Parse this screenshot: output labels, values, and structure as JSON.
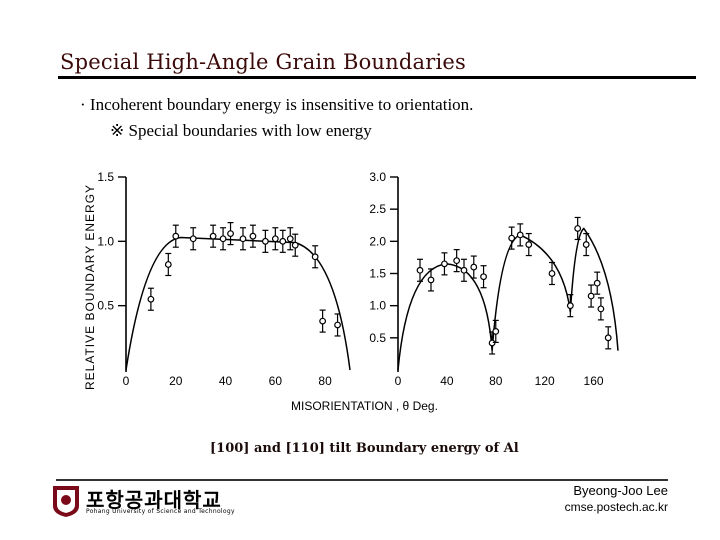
{
  "slide": {
    "title": "Special High-Angle Grain Boundaries",
    "bullet": "· Incoherent boundary energy is insensitive to orientation.",
    "sub_note": "※ Special boundaries with low energy",
    "caption": "[100] and [110] tilt Boundary energy of Al"
  },
  "footer": {
    "logo_korean": "포항공과대학교",
    "logo_english": "Pohang University of Science and Technology",
    "author": "Byeong-Joo Lee",
    "site": "cmse.postech.ac.kr"
  },
  "chart_data": [
    {
      "type": "scatter",
      "ylabel": "RELATIVE BOUNDARY ENERGY",
      "xlabel": "MISORIENTATION , θ Deg.",
      "xlim": [
        0,
        90
      ],
      "ylim": [
        0,
        1.5
      ],
      "x_ticks": [
        "0",
        "20",
        "40",
        "60",
        "80"
      ],
      "y_ticks": [
        "0.5",
        "1.0",
        "1.5"
      ],
      "series": [
        {
          "x": [
            10,
            17,
            20,
            27,
            35,
            39,
            42,
            47,
            51,
            56,
            60,
            63,
            66,
            68,
            76,
            79,
            85
          ],
          "y": [
            0.55,
            0.82,
            1.04,
            1.02,
            1.04,
            1.02,
            1.06,
            1.02,
            1.04,
            1.0,
            1.02,
            1.0,
            1.02,
            0.97,
            0.88,
            0.38,
            0.35
          ]
        }
      ]
    },
    {
      "type": "scatter",
      "xlim": [
        0,
        180
      ],
      "ylim": [
        0,
        3.0
      ],
      "x_ticks": [
        "0",
        "40",
        "80",
        "120",
        "160"
      ],
      "y_ticks": [
        "0.5",
        "1.0",
        "1.5",
        "2.0",
        "2.5",
        "3.0"
      ],
      "series": [
        {
          "x": [
            18,
            27,
            38,
            48,
            54,
            62,
            70,
            77,
            80,
            93,
            100,
            107,
            126,
            141,
            147,
            154,
            158,
            163,
            166,
            172
          ],
          "y": [
            1.55,
            1.4,
            1.65,
            1.7,
            1.55,
            1.6,
            1.45,
            0.42,
            0.6,
            2.05,
            2.1,
            1.95,
            1.5,
            1.0,
            2.2,
            1.95,
            1.15,
            1.35,
            0.95,
            0.5
          ]
        }
      ]
    }
  ]
}
